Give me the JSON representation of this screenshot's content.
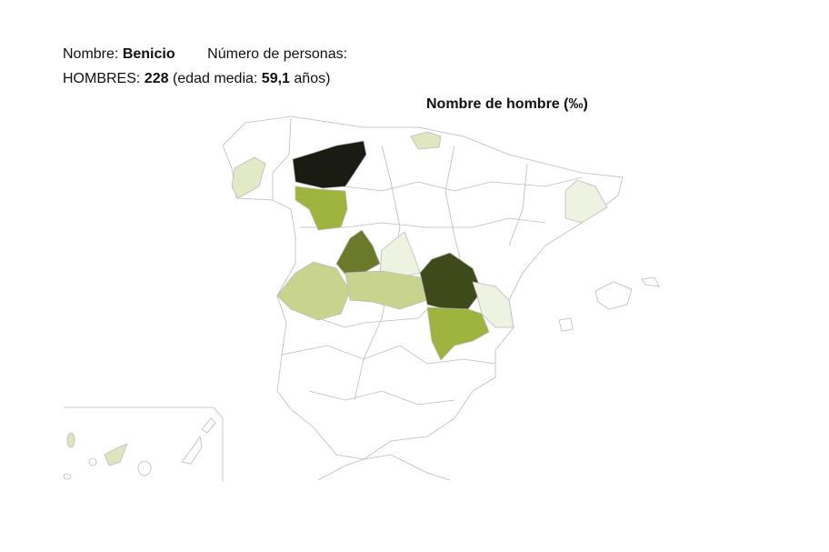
{
  "header": {
    "name_label": "Nombre:",
    "name": "Benicio",
    "count_label": "Número de personas:",
    "men_label": "HOMBRES:",
    "men_count": 228,
    "age_label": "(edad media:",
    "age": "59,1",
    "age_unit": "años)"
  },
  "map": {
    "title": "Nombre de hombre (‰)"
  }
}
